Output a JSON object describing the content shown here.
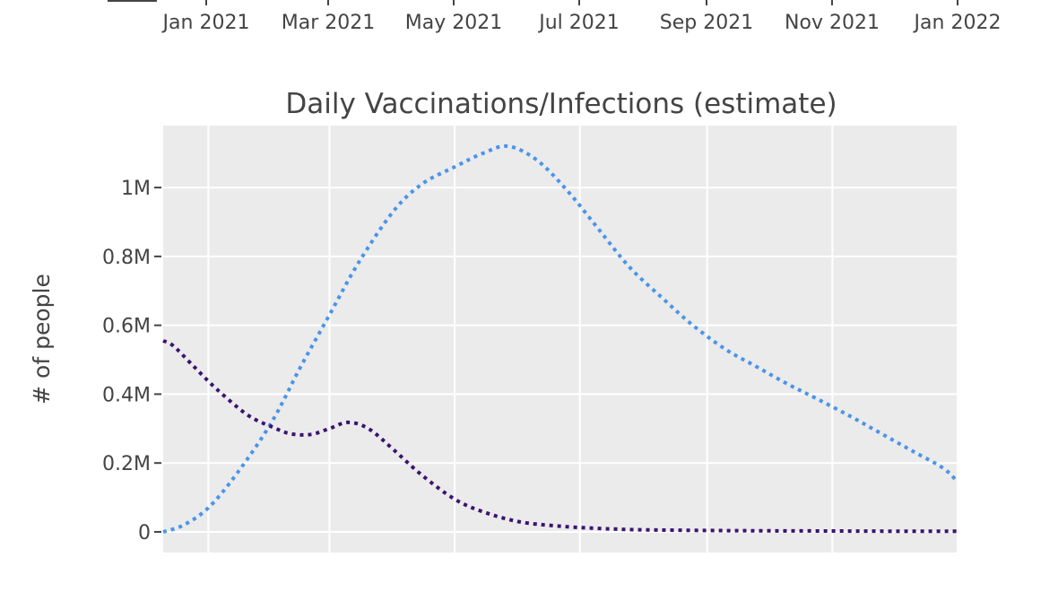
{
  "chart_data": [
    {
      "type": "line",
      "partial": true,
      "title": "",
      "xlabel": "",
      "ylabel": "",
      "x_tick_labels": [
        "Jan 2021",
        "Mar 2021",
        "May 2021",
        "Jul 2021",
        "Sep 2021",
        "Nov 2021",
        "Jan 2022"
      ],
      "series": []
    },
    {
      "type": "line",
      "title": "Daily Vaccinations/Infections (estimate)",
      "xlabel": "",
      "ylabel": "# of people",
      "x_type": "date",
      "xlim": [
        "2020-12-10",
        "2022-01-01"
      ],
      "ylim": [
        -60000,
        1180000
      ],
      "grid": true,
      "legend": "none",
      "plot_bgcolor": "#ebebeb",
      "x_ticks": [
        {
          "value": "2021-01-01",
          "label": "Jan 2021"
        },
        {
          "value": "2021-03-01",
          "label": "Mar 2021"
        },
        {
          "value": "2021-05-01",
          "label": "May 2021"
        },
        {
          "value": "2021-07-01",
          "label": "Jul 2021"
        },
        {
          "value": "2021-09-01",
          "label": "Sep 2021"
        },
        {
          "value": "2021-11-01",
          "label": "Nov 2021"
        },
        {
          "value": "2022-01-01",
          "label": "Jan 2022"
        }
      ],
      "y_ticks": [
        {
          "value": 0,
          "label": "0"
        },
        {
          "value": 200000,
          "label": "0.2M"
        },
        {
          "value": 400000,
          "label": "0.4M"
        },
        {
          "value": 600000,
          "label": "0.6M"
        },
        {
          "value": 800000,
          "label": "0.8M"
        },
        {
          "value": 1000000,
          "label": "1M"
        }
      ],
      "series": [
        {
          "color": "#4a94ea",
          "dash": "dot",
          "x": [
            "2020-12-10",
            "2020-12-20",
            "2021-01-01",
            "2021-01-15",
            "2021-02-01",
            "2021-02-15",
            "2021-03-01",
            "2021-03-15",
            "2021-04-01",
            "2021-04-15",
            "2021-05-01",
            "2021-05-15",
            "2021-05-27",
            "2021-06-10",
            "2021-06-25",
            "2021-07-10",
            "2021-07-25",
            "2021-08-10",
            "2021-08-25",
            "2021-09-10",
            "2021-09-25",
            "2021-10-10",
            "2021-10-25",
            "2021-11-10",
            "2021-11-25",
            "2021-12-10",
            "2021-12-25",
            "2022-01-01"
          ],
          "y": [
            0,
            20000,
            70000,
            170000,
            320000,
            480000,
            630000,
            780000,
            930000,
            1010000,
            1060000,
            1100000,
            1120000,
            1080000,
            990000,
            880000,
            770000,
            680000,
            600000,
            530000,
            480000,
            430000,
            385000,
            335000,
            285000,
            235000,
            185000,
            145000
          ]
        },
        {
          "color": "#3b1370",
          "dash": "dot",
          "x": [
            "2020-12-10",
            "2020-12-15",
            "2020-12-25",
            "2021-01-05",
            "2021-01-20",
            "2021-02-01",
            "2021-02-10",
            "2021-02-20",
            "2021-03-01",
            "2021-03-10",
            "2021-03-20",
            "2021-04-01",
            "2021-04-15",
            "2021-05-01",
            "2021-05-15",
            "2021-06-01",
            "2021-06-20",
            "2021-07-10",
            "2021-08-01",
            "2021-09-01",
            "2021-10-01",
            "2021-11-01",
            "2021-12-01",
            "2022-01-01"
          ],
          "y": [
            555000,
            540000,
            480000,
            415000,
            340000,
            305000,
            285000,
            283000,
            300000,
            318000,
            300000,
            240000,
            165000,
            95000,
            58000,
            30000,
            17000,
            10000,
            6000,
            4000,
            3000,
            2500,
            2000,
            2000
          ]
        }
      ]
    }
  ]
}
